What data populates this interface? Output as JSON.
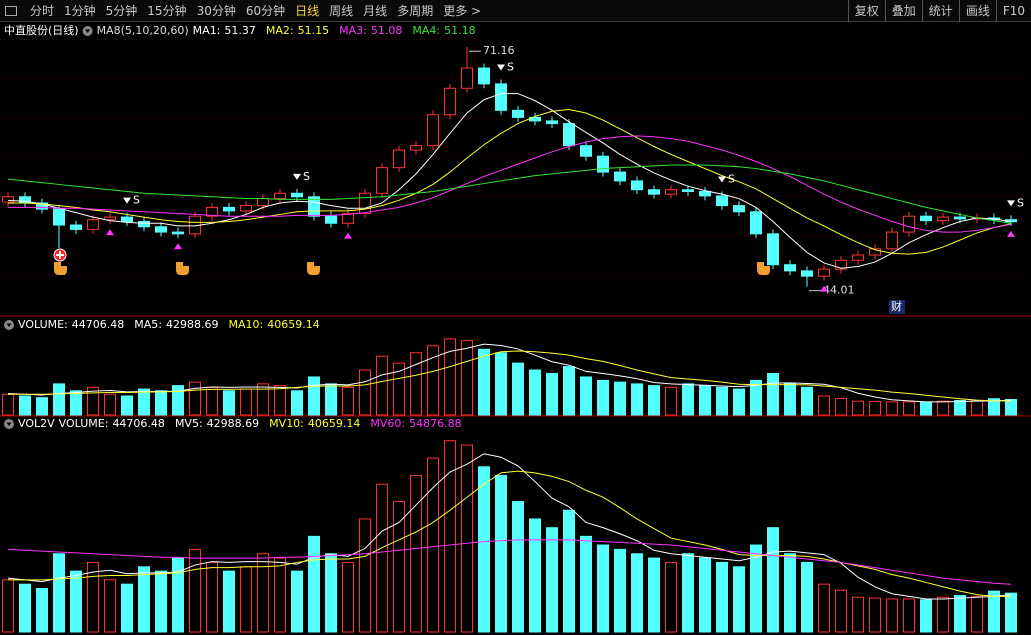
{
  "toolbar": {
    "left": [
      "分时",
      "1分钟",
      "5分钟",
      "15分钟",
      "30分钟",
      "60分钟",
      "日线",
      "周线",
      "月线",
      "多周期",
      "更多 >"
    ],
    "right": [
      "复权",
      "叠加",
      "统计",
      "画线",
      "F10"
    ]
  },
  "chart_data": [
    {
      "type": "candlestick",
      "title": "中直股份(日线)",
      "subtitle": "MA8(5,10,20,60)",
      "sell_label": "S",
      "badge": "财",
      "color_up": "#ff3232",
      "color_down": "#54ffff",
      "ylim": [
        40.8,
        72.2
      ],
      "grid": true,
      "open": [
        53.6,
        54.2,
        53.5,
        52.8,
        51.0,
        50.5,
        51.6,
        51.9,
        51.4,
        50.8,
        50.2,
        50.0,
        52.0,
        53.0,
        52.6,
        53.2,
        54.0,
        54.6,
        54.2,
        52.0,
        51.2,
        52.3,
        54.6,
        57.5,
        59.5,
        60.0,
        63.5,
        66.5,
        68.8,
        67.0,
        64.0,
        63.2,
        62.8,
        62.5,
        60.0,
        58.8,
        57.0,
        56.0,
        55.0,
        54.5,
        55.0,
        54.8,
        54.3,
        53.2,
        52.5,
        50.0,
        46.5,
        45.8,
        45.2,
        46.0,
        47.0,
        47.6,
        48.3,
        50.2,
        52.0,
        51.5,
        51.9,
        51.7,
        51.8,
        51.6
      ],
      "high": [
        54.7,
        54.7,
        54.0,
        53.3,
        51.5,
        52.1,
        52.4,
        52.4,
        51.9,
        51.3,
        50.7,
        52.5,
        53.5,
        53.5,
        53.7,
        54.5,
        55.1,
        55.1,
        54.7,
        52.5,
        52.8,
        55.1,
        58.0,
        60.0,
        60.5,
        64.0,
        67.0,
        71.16,
        69.3,
        67.5,
        64.5,
        63.7,
        63.3,
        63.0,
        60.5,
        59.3,
        57.5,
        56.5,
        55.5,
        55.5,
        55.5,
        55.3,
        54.8,
        53.7,
        53.0,
        50.5,
        47.0,
        46.3,
        46.5,
        47.5,
        48.1,
        48.8,
        50.7,
        52.5,
        52.5,
        52.4,
        52.4,
        52.3,
        52.3,
        52.1
      ],
      "low": [
        53.1,
        53.0,
        52.3,
        48.4,
        50.0,
        50.0,
        51.1,
        50.9,
        50.3,
        49.7,
        49.5,
        49.5,
        51.5,
        52.1,
        52.1,
        52.7,
        53.5,
        53.7,
        51.5,
        50.7,
        50.7,
        51.8,
        54.1,
        57.0,
        59.0,
        59.5,
        63.0,
        66.0,
        66.5,
        63.5,
        62.7,
        62.3,
        62.0,
        59.5,
        58.3,
        56.5,
        55.5,
        54.5,
        54.0,
        54.0,
        54.3,
        53.8,
        52.7,
        52.0,
        49.5,
        46.0,
        45.3,
        44.01,
        44.7,
        45.5,
        46.5,
        47.1,
        47.8,
        49.7,
        51.0,
        51.0,
        51.2,
        51.2,
        51.1,
        50.9
      ],
      "close": [
        54.2,
        53.5,
        52.8,
        51.0,
        50.5,
        51.6,
        51.9,
        51.4,
        50.8,
        50.2,
        50.0,
        52.0,
        53.0,
        52.6,
        53.2,
        54.0,
        54.6,
        54.2,
        52.0,
        51.2,
        52.3,
        54.6,
        57.5,
        59.5,
        60.0,
        63.5,
        66.5,
        68.8,
        67.0,
        64.0,
        63.2,
        62.8,
        62.5,
        60.0,
        58.8,
        57.0,
        56.0,
        55.0,
        54.5,
        55.0,
        54.8,
        54.3,
        53.2,
        52.5,
        50.0,
        46.5,
        45.8,
        45.2,
        46.0,
        47.0,
        47.6,
        48.3,
        50.2,
        52.0,
        51.5,
        51.9,
        51.7,
        51.8,
        51.6,
        51.37
      ],
      "series": [
        {
          "name": "MA1:",
          "color": "#ffffff",
          "values": [
            53.8,
            53.7,
            53.4,
            52.9,
            52.4,
            51.9,
            51.5,
            51.3,
            51.2,
            51.2,
            50.9,
            50.9,
            51.2,
            51.6,
            52.2,
            53.0,
            53.5,
            53.7,
            53.6,
            53.2,
            52.9,
            52.9,
            53.5,
            55.0,
            56.8,
            59.0,
            61.4,
            63.7,
            65.2,
            65.9,
            65.9,
            65.1,
            64.0,
            62.7,
            61.5,
            60.3,
            59.0,
            57.9,
            56.9,
            56.1,
            55.4,
            54.9,
            54.5,
            54.0,
            53.0,
            51.4,
            49.6,
            47.9,
            46.7,
            46.1,
            46.3,
            46.8,
            47.8,
            49.0,
            49.9,
            50.7,
            51.4,
            51.8,
            51.7,
            51.37
          ]
        },
        {
          "name": "MA2:",
          "color": "#ffff33",
          "values": [
            53.5,
            53.5,
            53.4,
            53.2,
            53.0,
            52.7,
            52.5,
            52.2,
            51.9,
            51.6,
            51.4,
            51.3,
            51.3,
            51.4,
            51.6,
            51.9,
            52.2,
            52.5,
            52.6,
            52.6,
            52.6,
            52.8,
            53.2,
            53.8,
            54.6,
            55.6,
            57.0,
            58.6,
            60.1,
            61.4,
            62.5,
            63.3,
            63.9,
            64.1,
            63.7,
            62.9,
            61.9,
            60.9,
            59.9,
            59.0,
            58.2,
            57.4,
            56.6,
            55.9,
            55.1,
            54.0,
            52.9,
            51.8,
            50.9,
            49.9,
            49.0,
            48.2,
            47.8,
            47.7,
            47.9,
            48.5,
            49.3,
            50.1,
            50.7,
            51.15
          ]
        },
        {
          "name": "MA3:",
          "color": "#ff33ff",
          "values": [
            53.0,
            53.0,
            53.0,
            52.9,
            52.9,
            52.8,
            52.7,
            52.6,
            52.5,
            52.4,
            52.3,
            52.2,
            52.1,
            52.0,
            52.0,
            52.0,
            52.0,
            52.1,
            52.1,
            52.1,
            52.2,
            52.4,
            52.7,
            53.0,
            53.5,
            54.1,
            54.9,
            55.7,
            56.5,
            57.2,
            57.9,
            58.6,
            59.3,
            59.9,
            60.4,
            60.8,
            61.0,
            61.1,
            61.0,
            60.8,
            60.5,
            60.0,
            59.5,
            58.9,
            58.2,
            57.4,
            56.5,
            55.5,
            54.5,
            53.6,
            52.8,
            52.1,
            51.4,
            50.8,
            50.4,
            50.2,
            50.2,
            50.4,
            50.7,
            51.08
          ]
        },
        {
          "name": "MA4:",
          "color": "#33e633",
          "values": [
            56.2,
            56.0,
            55.8,
            55.6,
            55.4,
            55.2,
            55.0,
            54.8,
            54.6,
            54.5,
            54.4,
            54.3,
            54.2,
            54.1,
            54.0,
            54.0,
            53.9,
            53.9,
            53.9,
            53.9,
            54.0,
            54.1,
            54.2,
            54.4,
            54.6,
            54.8,
            55.1,
            55.4,
            55.7,
            56.0,
            56.3,
            56.6,
            56.8,
            57.0,
            57.2,
            57.4,
            57.5,
            57.6,
            57.7,
            57.8,
            57.8,
            57.8,
            57.7,
            57.6,
            57.4,
            57.1,
            56.8,
            56.4,
            56.0,
            55.5,
            55.0,
            54.5,
            54.0,
            53.5,
            53.0,
            52.6,
            52.2,
            51.8,
            51.5,
            51.18
          ]
        }
      ]
    },
    {
      "type": "bar",
      "ylim": [
        0,
        240000
      ],
      "series": [
        {
          "name": "VOLUME:",
          "color": "#ffffff",
          "values": [
            60000,
            55000,
            50000,
            90000,
            70000,
            80000,
            60000,
            55000,
            75000,
            70000,
            85000,
            95000,
            80000,
            70000,
            75000,
            90000,
            85000,
            70000,
            110000,
            90000,
            80000,
            130000,
            170000,
            150000,
            180000,
            200000,
            220000,
            215000,
            190000,
            180000,
            150000,
            130000,
            120000,
            140000,
            110000,
            100000,
            95000,
            90000,
            85000,
            80000,
            90000,
            85000,
            80000,
            75000,
            100000,
            120000,
            90000,
            80000,
            55000,
            48000,
            40000,
            39000,
            38000,
            38000,
            37000,
            40000,
            42000,
            41000,
            47000,
            44706.48
          ]
        },
        {
          "name": "MA5:",
          "color": "#ffffff",
          "values": [
            62000,
            60000,
            58000,
            62000,
            65000,
            69000,
            71000,
            67000,
            68000,
            68000,
            69000,
            77000,
            81000,
            80000,
            81000,
            81000,
            80000,
            78000,
            86000,
            89000,
            87000,
            96000,
            116000,
            126000,
            146000,
            166000,
            184000,
            193000,
            205000,
            201000,
            191000,
            173000,
            154000,
            144000,
            126000,
            120000,
            113000,
            105000,
            94000,
            90000,
            88000,
            86000,
            84000,
            82000,
            86000,
            92000,
            93000,
            91000,
            89000,
            79000,
            63000,
            52000,
            44000,
            41000,
            38000,
            38000,
            39000,
            40000,
            41000,
            42988.69
          ]
        },
        {
          "name": "MA10:",
          "color": "#ffff33",
          "values": [
            60000,
            60000,
            60000,
            61000,
            62000,
            64000,
            65000,
            65000,
            66000,
            67000,
            68000,
            72000,
            74000,
            74000,
            75000,
            75000,
            76000,
            80000,
            83000,
            84000,
            84000,
            87000,
            97000,
            106000,
            115000,
            126000,
            140000,
            155000,
            170000,
            183000,
            185000,
            183000,
            179000,
            173000,
            163000,
            155000,
            143000,
            130000,
            119000,
            108000,
            104000,
            100000,
            95000,
            89000,
            88000,
            88000,
            88000,
            87000,
            84000,
            80000,
            76000,
            72000,
            66000,
            62000,
            57000,
            52000,
            47000,
            43000,
            41000,
            40659.14
          ]
        }
      ]
    },
    {
      "type": "bar",
      "title": "VOL2V",
      "ylim": [
        0,
        230000
      ],
      "series": [
        {
          "name": "VOLUME:",
          "color": "#ffffff",
          "values": [
            60000,
            55000,
            50000,
            90000,
            70000,
            80000,
            60000,
            55000,
            75000,
            70000,
            85000,
            95000,
            80000,
            70000,
            75000,
            90000,
            85000,
            70000,
            110000,
            90000,
            80000,
            130000,
            170000,
            150000,
            180000,
            200000,
            220000,
            215000,
            190000,
            180000,
            150000,
            130000,
            120000,
            140000,
            110000,
            100000,
            95000,
            90000,
            85000,
            80000,
            90000,
            85000,
            80000,
            75000,
            100000,
            120000,
            90000,
            80000,
            55000,
            48000,
            40000,
            39000,
            38000,
            38000,
            37000,
            40000,
            42000,
            41000,
            47000,
            44706.48
          ]
        },
        {
          "name": "MV5:",
          "color": "#ffffff",
          "values": [
            62000,
            60000,
            58000,
            62000,
            65000,
            69000,
            71000,
            67000,
            68000,
            68000,
            69000,
            77000,
            81000,
            80000,
            81000,
            81000,
            80000,
            78000,
            86000,
            89000,
            87000,
            96000,
            116000,
            126000,
            146000,
            166000,
            184000,
            193000,
            205000,
            201000,
            191000,
            173000,
            154000,
            144000,
            126000,
            120000,
            113000,
            105000,
            94000,
            90000,
            88000,
            86000,
            84000,
            82000,
            86000,
            92000,
            93000,
            91000,
            89000,
            79000,
            63000,
            52000,
            44000,
            41000,
            38000,
            38000,
            39000,
            40000,
            41000,
            42988.69
          ]
        },
        {
          "name": "MV10:",
          "color": "#ffff33",
          "values": [
            60000,
            60000,
            60000,
            61000,
            62000,
            64000,
            65000,
            65000,
            66000,
            67000,
            68000,
            72000,
            74000,
            74000,
            75000,
            75000,
            76000,
            80000,
            83000,
            84000,
            84000,
            87000,
            97000,
            106000,
            115000,
            126000,
            140000,
            155000,
            170000,
            183000,
            185000,
            183000,
            179000,
            173000,
            163000,
            155000,
            143000,
            130000,
            119000,
            108000,
            104000,
            100000,
            95000,
            89000,
            88000,
            88000,
            88000,
            87000,
            84000,
            80000,
            76000,
            72000,
            66000,
            62000,
            57000,
            52000,
            47000,
            43000,
            41000,
            40659.14
          ]
        },
        {
          "name": "MV60:",
          "color": "#ff33ff",
          "values": [
            95000,
            94000,
            93000,
            92000,
            91000,
            90000,
            89000,
            88000,
            87000,
            86000,
            86000,
            85000,
            85000,
            85000,
            85000,
            85000,
            86000,
            86000,
            87000,
            88000,
            89000,
            90000,
            92000,
            94000,
            96000,
            98000,
            100000,
            102000,
            104000,
            105000,
            106000,
            106000,
            106000,
            106000,
            105000,
            104000,
            103000,
            102000,
            101000,
            100000,
            98000,
            96000,
            94000,
            92000,
            90000,
            88000,
            86000,
            84000,
            82000,
            80000,
            77000,
            74000,
            71000,
            68000,
            65000,
            62000,
            60000,
            58000,
            56000,
            54876.88
          ]
        }
      ]
    }
  ]
}
